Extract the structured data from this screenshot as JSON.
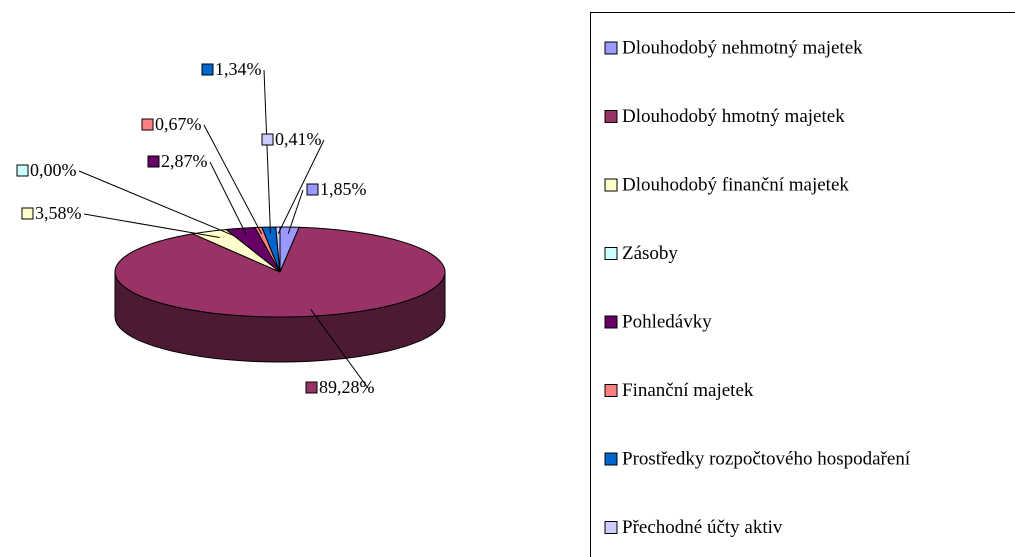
{
  "chart_data": {
    "type": "pie",
    "categories": [
      "Dlouhodobý nehmotný majetek",
      "Dlouhodobý hmotný majetek",
      "Dlouhodobý finanční majetek",
      "Zásoby",
      "Pohledávky",
      "Finanční majetek",
      "Prostředky rozpočtového hospodaření",
      "Přechodné účty aktiv"
    ],
    "values": [
      1.85,
      89.28,
      3.58,
      0.0,
      2.87,
      0.67,
      1.34,
      0.41
    ],
    "value_labels": [
      "1,85%",
      "89,28%",
      "3,58%",
      "0,00%",
      "2,87%",
      "0,67%",
      "1,34%",
      "0,41%"
    ],
    "colors": [
      "#9999ff",
      "#993366",
      "#ffffcc",
      "#ccffff",
      "#660066",
      "#ff8080",
      "#0066cc",
      "#ccccff"
    ],
    "legend": "right"
  }
}
